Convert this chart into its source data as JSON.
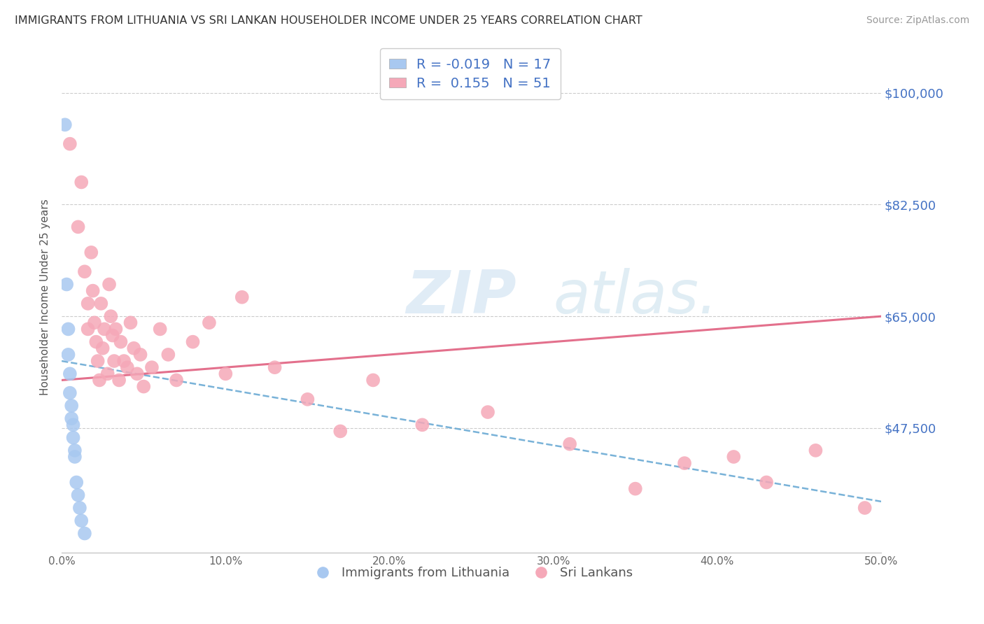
{
  "title": "IMMIGRANTS FROM LITHUANIA VS SRI LANKAN HOUSEHOLDER INCOME UNDER 25 YEARS CORRELATION CHART",
  "source": "Source: ZipAtlas.com",
  "ylabel": "Householder Income Under 25 years",
  "xlim": [
    0.0,
    0.5
  ],
  "ylim": [
    28000,
    108000
  ],
  "yticks": [
    47500,
    65000,
    82500,
    100000
  ],
  "ytick_labels": [
    "$47,500",
    "$65,000",
    "$82,500",
    "$100,000"
  ],
  "xticks": [
    0.0,
    0.1,
    0.2,
    0.3,
    0.4,
    0.5
  ],
  "xtick_labels": [
    "0.0%",
    "10.0%",
    "20.0%",
    "30.0%",
    "40.0%",
    "50.0%"
  ],
  "blue_color": "#a8c8f0",
  "pink_color": "#f5a8b8",
  "trend_blue_color": "#6aaad4",
  "trend_pink_color": "#e06080",
  "legend_R_blue": "-0.019",
  "legend_N_blue": "17",
  "legend_R_pink": "0.155",
  "legend_N_pink": "51",
  "blue_points_x": [
    0.002,
    0.003,
    0.004,
    0.004,
    0.005,
    0.005,
    0.006,
    0.006,
    0.007,
    0.007,
    0.008,
    0.008,
    0.009,
    0.01,
    0.011,
    0.012,
    0.014
  ],
  "blue_points_y": [
    95000,
    70000,
    63000,
    59000,
    56000,
    53000,
    51000,
    49000,
    48000,
    46000,
    44000,
    43000,
    39000,
    37000,
    35000,
    33000,
    31000
  ],
  "pink_points_x": [
    0.005,
    0.01,
    0.012,
    0.014,
    0.016,
    0.016,
    0.018,
    0.019,
    0.02,
    0.021,
    0.022,
    0.023,
    0.024,
    0.025,
    0.026,
    0.028,
    0.029,
    0.03,
    0.031,
    0.032,
    0.033,
    0.035,
    0.036,
    0.038,
    0.04,
    0.042,
    0.044,
    0.046,
    0.048,
    0.05,
    0.055,
    0.06,
    0.065,
    0.07,
    0.08,
    0.09,
    0.1,
    0.11,
    0.13,
    0.15,
    0.17,
    0.19,
    0.22,
    0.26,
    0.31,
    0.35,
    0.38,
    0.41,
    0.43,
    0.46,
    0.49
  ],
  "pink_points_y": [
    92000,
    79000,
    86000,
    72000,
    67000,
    63000,
    75000,
    69000,
    64000,
    61000,
    58000,
    55000,
    67000,
    60000,
    63000,
    56000,
    70000,
    65000,
    62000,
    58000,
    63000,
    55000,
    61000,
    58000,
    57000,
    64000,
    60000,
    56000,
    59000,
    54000,
    57000,
    63000,
    59000,
    55000,
    61000,
    64000,
    56000,
    68000,
    57000,
    52000,
    47000,
    55000,
    48000,
    50000,
    45000,
    38000,
    42000,
    43000,
    39000,
    44000,
    35000
  ],
  "blue_trend_x0": 0.0,
  "blue_trend_y0": 58000,
  "blue_trend_x1": 0.5,
  "blue_trend_y1": 36000,
  "pink_trend_x0": 0.0,
  "pink_trend_y0": 55000,
  "pink_trend_x1": 0.5,
  "pink_trend_y1": 65000
}
